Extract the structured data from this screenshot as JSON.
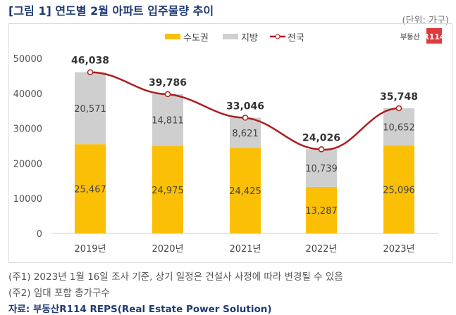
{
  "title": "[그림 1] 연도별 2월 아파트 입주물량 추이",
  "unit": "(단위: 가구)",
  "logo_text": "부동산R114",
  "notes": [
    "(주1) 2023년 1월 16일 조사 기준, 상기 일정은 건설사 사정에 따라 변경될 수 있음",
    "(주2) 임대 포함 총가구수"
  ],
  "source": "자료: 부동산R114 REPS(Real Estate Power Solution)",
  "chart_data": {
    "type": "bar",
    "stacked": true,
    "categories": [
      "2019년",
      "2020년",
      "2021년",
      "2022년",
      "2023년"
    ],
    "series": [
      {
        "name": "수도권",
        "type": "bar",
        "color": "#fbbf06",
        "values": [
          25467,
          24975,
          24425,
          13287,
          25096
        ],
        "labels": [
          "25,467",
          "24,975",
          "24,425",
          "13,287",
          "25,096"
        ]
      },
      {
        "name": "지방",
        "type": "bar",
        "color": "#cfcfcf",
        "values": [
          20571,
          14811,
          8621,
          10739,
          10652
        ],
        "labels": [
          "20,571",
          "14,811",
          "8,621",
          "10,739",
          "10,652"
        ]
      },
      {
        "name": "전국",
        "type": "line",
        "color": "#b01c1c",
        "values": [
          46038,
          39786,
          33046,
          24026,
          35748
        ],
        "labels": [
          "46,038",
          "39,786",
          "33,046",
          "24,026",
          "35,748"
        ]
      }
    ],
    "ylim": [
      0,
      50000
    ],
    "yticks": [
      "0",
      "10000",
      "20000",
      "30000",
      "40000",
      "50000"
    ],
    "legend": "top-center",
    "grid": false
  }
}
